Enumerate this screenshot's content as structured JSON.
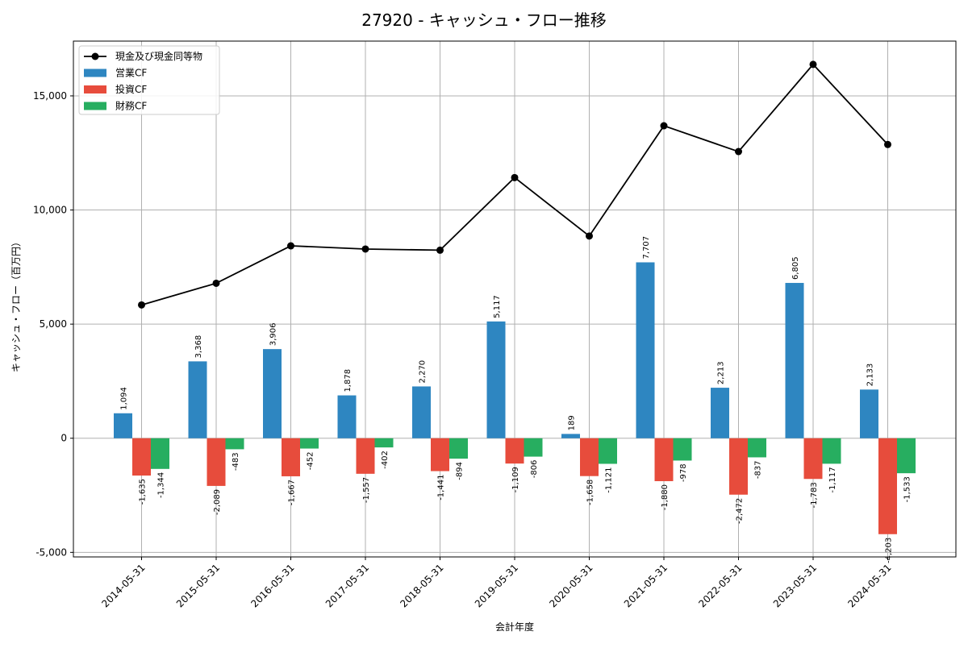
{
  "chart_data": {
    "type": "bar",
    "title": "27920 - キャッシュ・フロー推移",
    "xlabel": "会計年度",
    "ylabel": "キャッシュ・フロー（百万円）",
    "ylim": [
      -5200,
      17400
    ],
    "yticks": [
      -5000,
      0,
      5000,
      10000,
      15000
    ],
    "ytick_labels": [
      "-5,000",
      "0",
      "5,000",
      "10,000",
      "15,000"
    ],
    "grid": true,
    "legend_position": "top-left",
    "categories": [
      "2014-05-31",
      "2015-05-31",
      "2016-05-31",
      "2017-05-31",
      "2018-05-31",
      "2019-05-31",
      "2020-05-31",
      "2021-05-31",
      "2022-05-31",
      "2023-05-31",
      "2024-05-31"
    ],
    "series": [
      {
        "name": "営業CF",
        "kind": "bar",
        "color": "#2e86c1",
        "values": [
          1094,
          3368,
          3906,
          1878,
          2270,
          5117,
          189,
          7707,
          2213,
          6805,
          2133
        ],
        "labels": [
          "1,094",
          "3,368",
          "3,906",
          "1,878",
          "2,270",
          "5,117",
          "189",
          "7,707",
          "2,213",
          "6,805",
          "2,133"
        ]
      },
      {
        "name": "投資CF",
        "kind": "bar",
        "color": "#e74c3c",
        "values": [
          -1635,
          -2089,
          -1667,
          -1557,
          -1441,
          -1109,
          -1658,
          -1880,
          -2472,
          -1783,
          -4203
        ],
        "labels": [
          "-1,635",
          "-2,089",
          "-1,667",
          "-1,557",
          "-1,441",
          "-1,109",
          "-1,658",
          "-1,880",
          "-2,472",
          "-1,783",
          "-4,203"
        ]
      },
      {
        "name": "財務CF",
        "kind": "bar",
        "color": "#27ae60",
        "values": [
          -1344,
          -483,
          -452,
          -402,
          -894,
          -806,
          -1121,
          -978,
          -837,
          -1117,
          -1533
        ],
        "labels": [
          "-1,344",
          "-483",
          "-452",
          "-402",
          "-894",
          "-806",
          "-1,121",
          "-978",
          "-837",
          "-1,117",
          "-1,533"
        ]
      },
      {
        "name": "現金及び現金同等物",
        "kind": "line",
        "color": "#000000",
        "values": [
          5840,
          6790,
          8430,
          8290,
          8240,
          11420,
          8860,
          13690,
          12560,
          16380,
          12870
        ]
      }
    ]
  }
}
